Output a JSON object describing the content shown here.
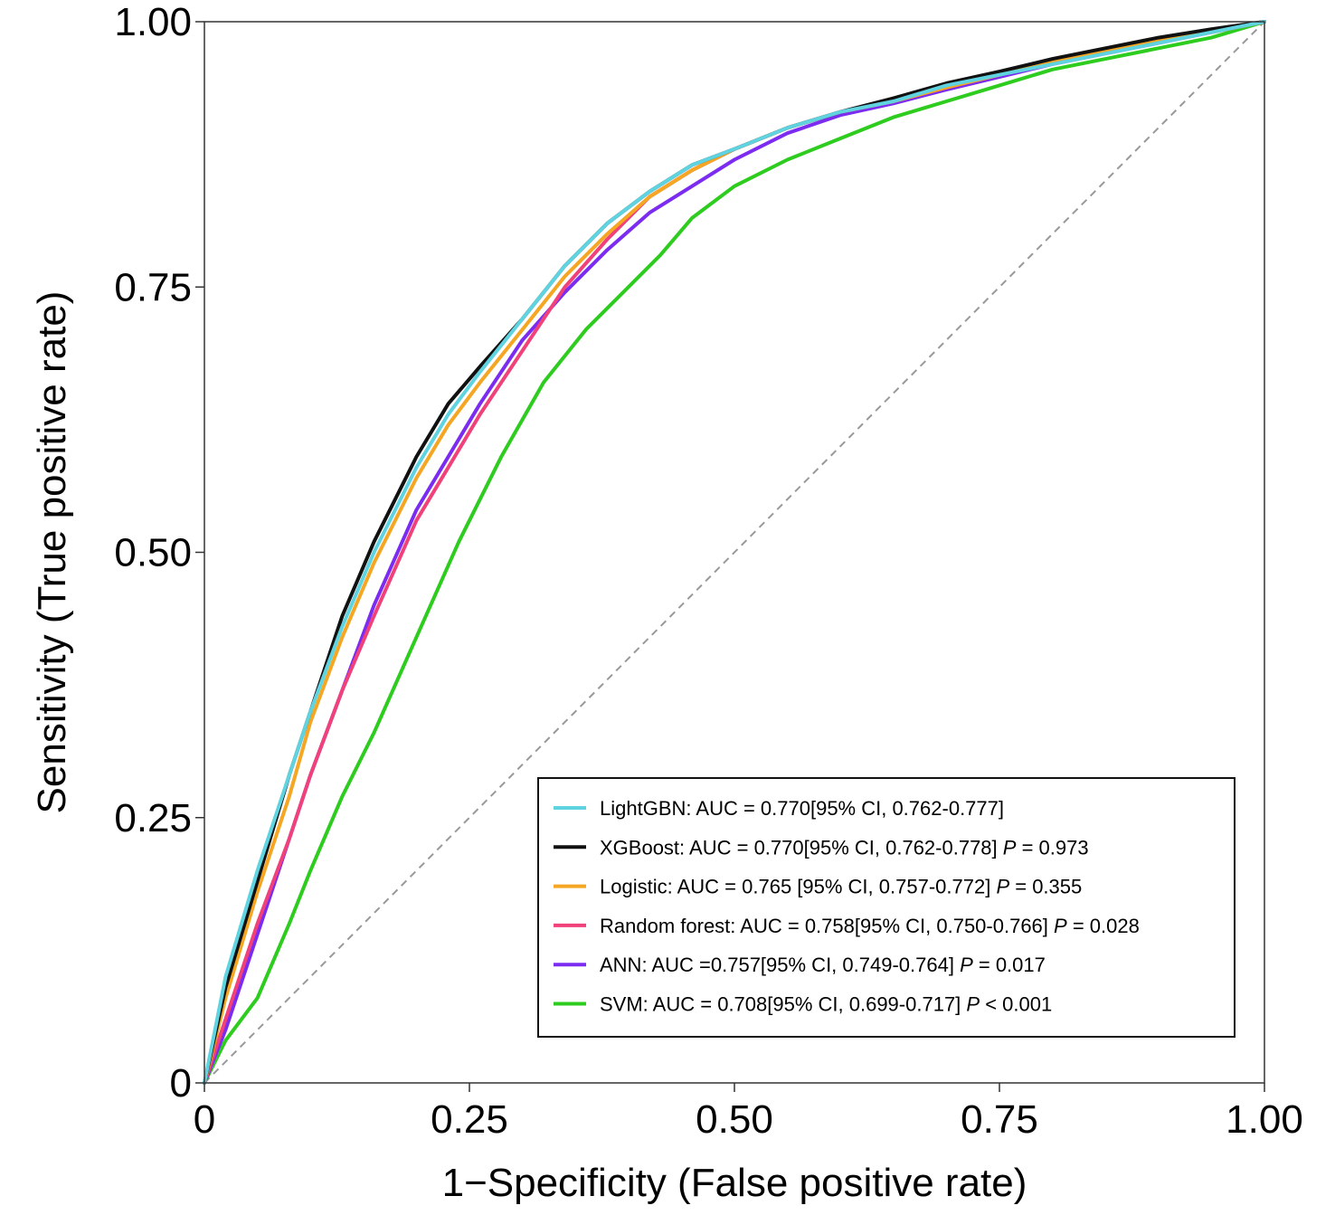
{
  "chart_data": {
    "type": "line",
    "title": "",
    "xlabel": "1−Specificity (False positive rate)",
    "ylabel": "Sensitivity (True positive rate)",
    "xlim": [
      0,
      1
    ],
    "ylim": [
      0,
      1
    ],
    "xticks": [
      0,
      0.25,
      0.5,
      0.75,
      1.0
    ],
    "xtick_labels": [
      "0",
      "0.25",
      "0.50",
      "0.75",
      "1.00"
    ],
    "yticks": [
      0,
      0.25,
      0.5,
      0.75,
      1.0
    ],
    "ytick_labels": [
      "0",
      "0.25",
      "0.50",
      "0.75",
      "1.00"
    ],
    "grid": false,
    "legend_position": "bottom-right",
    "reference_line": {
      "x": [
        0,
        1
      ],
      "y": [
        0,
        1
      ],
      "style": "dashed",
      "color": "#999999"
    },
    "series": [
      {
        "name": "LightGBN",
        "legend": {
          "prefix": "LightGBN: AUC = 0.770[95% CI, 0.762-0.777]",
          "p_value": ""
        },
        "color": "#5fd3e0",
        "x": [
          0,
          0.02,
          0.05,
          0.08,
          0.1,
          0.13,
          0.16,
          0.2,
          0.23,
          0.26,
          0.3,
          0.34,
          0.38,
          0.42,
          0.46,
          0.5,
          0.55,
          0.6,
          0.65,
          0.7,
          0.75,
          0.8,
          0.85,
          0.9,
          0.95,
          1.0
        ],
        "y": [
          0,
          0.1,
          0.2,
          0.29,
          0.35,
          0.43,
          0.5,
          0.58,
          0.63,
          0.67,
          0.72,
          0.77,
          0.81,
          0.84,
          0.865,
          0.88,
          0.9,
          0.915,
          0.925,
          0.94,
          0.95,
          0.96,
          0.97,
          0.98,
          0.99,
          1.0
        ]
      },
      {
        "name": "XGBoost",
        "legend": {
          "prefix": "XGBoost: AUC = 0.770[95% CI, 0.762-0.778] ",
          "p_value": "P = 0.973"
        },
        "color": "#111111",
        "x": [
          0,
          0.02,
          0.05,
          0.08,
          0.1,
          0.13,
          0.16,
          0.2,
          0.23,
          0.26,
          0.3,
          0.34,
          0.38,
          0.42,
          0.46,
          0.5,
          0.55,
          0.6,
          0.65,
          0.7,
          0.75,
          0.8,
          0.85,
          0.9,
          0.95,
          1.0
        ],
        "y": [
          0,
          0.09,
          0.19,
          0.29,
          0.35,
          0.44,
          0.51,
          0.59,
          0.64,
          0.675,
          0.72,
          0.77,
          0.81,
          0.84,
          0.865,
          0.88,
          0.9,
          0.915,
          0.928,
          0.942,
          0.953,
          0.965,
          0.975,
          0.985,
          0.993,
          1.0
        ]
      },
      {
        "name": "Logistic",
        "legend": {
          "prefix": "Logistic: AUC = 0.765 [95% CI, 0.757-0.772] ",
          "p_value": "P = 0.355"
        },
        "color": "#f5a623",
        "x": [
          0,
          0.02,
          0.05,
          0.08,
          0.1,
          0.13,
          0.16,
          0.2,
          0.23,
          0.26,
          0.3,
          0.34,
          0.38,
          0.42,
          0.46,
          0.5,
          0.55,
          0.6,
          0.65,
          0.7,
          0.75,
          0.8,
          0.85,
          0.9,
          0.95,
          1.0
        ],
        "y": [
          0,
          0.08,
          0.18,
          0.27,
          0.34,
          0.42,
          0.49,
          0.57,
          0.62,
          0.66,
          0.71,
          0.76,
          0.8,
          0.835,
          0.86,
          0.88,
          0.9,
          0.915,
          0.925,
          0.938,
          0.95,
          0.962,
          0.972,
          0.982,
          0.99,
          1.0
        ]
      },
      {
        "name": "Random forest",
        "legend": {
          "prefix": "Random forest: AUC = 0.758[95% CI, 0.750-0.766] ",
          "p_value": "P = 0.028"
        },
        "color": "#f0417a",
        "x": [
          0,
          0.02,
          0.05,
          0.08,
          0.1,
          0.13,
          0.16,
          0.2,
          0.23,
          0.26,
          0.3,
          0.34,
          0.38,
          0.42,
          0.46,
          0.5,
          0.55,
          0.6,
          0.65,
          0.7,
          0.75,
          0.8,
          0.85,
          0.9,
          0.95,
          1.0
        ],
        "y": [
          0,
          0.06,
          0.15,
          0.23,
          0.29,
          0.37,
          0.44,
          0.53,
          0.58,
          0.63,
          0.69,
          0.75,
          0.795,
          0.835,
          0.86,
          0.88,
          0.9,
          0.915,
          0.925,
          0.938,
          0.95,
          0.962,
          0.972,
          0.982,
          0.99,
          1.0
        ]
      },
      {
        "name": "ANN",
        "legend": {
          "prefix": "ANN: AUC =0.757[95% CI, 0.749-0.764] ",
          "p_value": "P = 0.017"
        },
        "color": "#7b2cf0",
        "x": [
          0,
          0.02,
          0.05,
          0.08,
          0.1,
          0.13,
          0.16,
          0.2,
          0.23,
          0.26,
          0.3,
          0.34,
          0.38,
          0.42,
          0.46,
          0.5,
          0.55,
          0.6,
          0.65,
          0.7,
          0.75,
          0.8,
          0.85,
          0.9,
          0.95,
          1.0
        ],
        "y": [
          0,
          0.05,
          0.14,
          0.23,
          0.29,
          0.37,
          0.45,
          0.54,
          0.59,
          0.64,
          0.7,
          0.745,
          0.785,
          0.82,
          0.845,
          0.87,
          0.895,
          0.912,
          0.923,
          0.936,
          0.948,
          0.96,
          0.97,
          0.98,
          0.99,
          1.0
        ]
      },
      {
        "name": "SVM",
        "legend": {
          "prefix": "SVM: AUC = 0.708[95% CI, 0.699-0.717] ",
          "p_value": "P < 0.001"
        },
        "color": "#2ecc1f",
        "x": [
          0,
          0.02,
          0.05,
          0.08,
          0.1,
          0.13,
          0.16,
          0.2,
          0.24,
          0.28,
          0.32,
          0.36,
          0.4,
          0.43,
          0.46,
          0.5,
          0.55,
          0.6,
          0.65,
          0.7,
          0.75,
          0.8,
          0.85,
          0.9,
          0.95,
          1.0
        ],
        "y": [
          0,
          0.04,
          0.08,
          0.15,
          0.2,
          0.27,
          0.33,
          0.42,
          0.51,
          0.59,
          0.66,
          0.71,
          0.75,
          0.78,
          0.815,
          0.845,
          0.87,
          0.89,
          0.91,
          0.925,
          0.94,
          0.955,
          0.965,
          0.975,
          0.985,
          1.0
        ]
      }
    ]
  }
}
